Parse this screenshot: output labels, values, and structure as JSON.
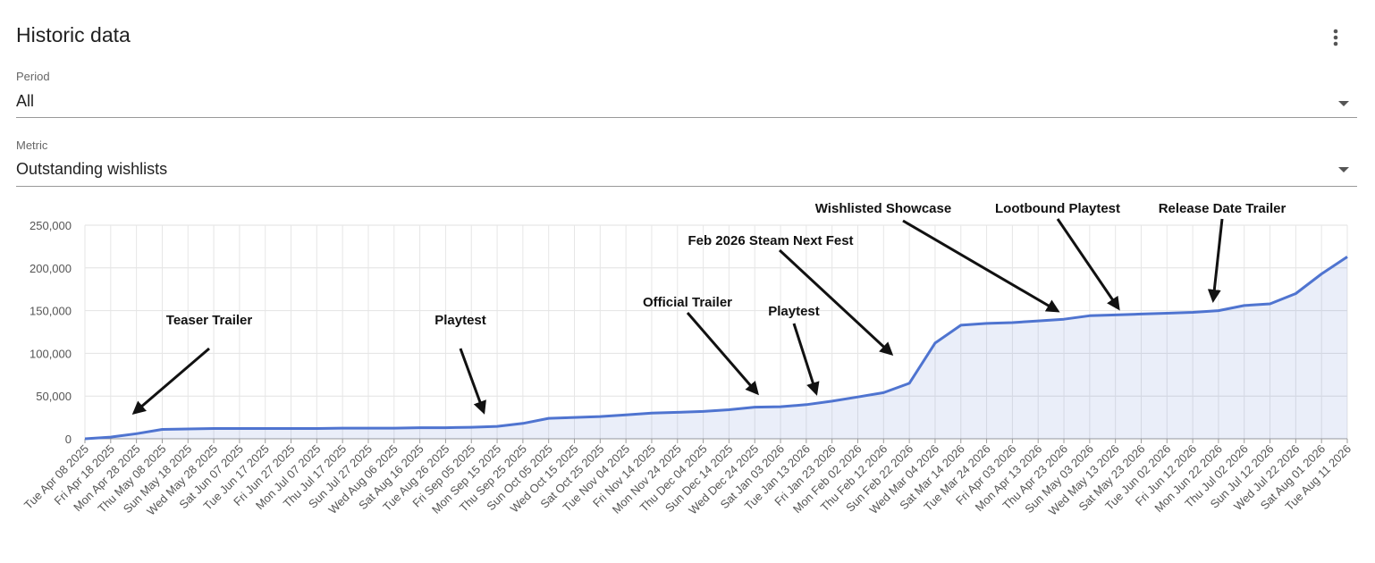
{
  "header": {
    "title": "Historic data"
  },
  "filters": [
    {
      "label": "Period",
      "value": "All"
    },
    {
      "label": "Metric",
      "value": "Outstanding wishlists"
    }
  ],
  "chart_data": {
    "type": "line",
    "categories": [
      "Tue Apr 08 2025",
      "Fri Apr 18 2025",
      "Mon Apr 28 2025",
      "Thu May 08 2025",
      "Sun May 18 2025",
      "Wed May 28 2025",
      "Sat Jun 07 2025",
      "Tue Jun 17 2025",
      "Fri Jun 27 2025",
      "Mon Jul 07 2025",
      "Thu Jul 17 2025",
      "Sun Jul 27 2025",
      "Wed Aug 06 2025",
      "Sat Aug 16 2025",
      "Tue Aug 26 2025",
      "Fri Sep 05 2025",
      "Mon Sep 15 2025",
      "Thu Sep 25 2025",
      "Sun Oct 05 2025",
      "Wed Oct 15 2025",
      "Sat Oct 25 2025",
      "Tue Nov 04 2025",
      "Fri Nov 14 2025",
      "Mon Nov 24 2025",
      "Thu Dec 04 2025",
      "Sun Dec 14 2025",
      "Wed Dec 24 2025",
      "Sat Jan 03 2026",
      "Tue Jan 13 2026",
      "Fri Jan 23 2026",
      "Mon Feb 02 2026",
      "Thu Feb 12 2026",
      "Sun Feb 22 2026",
      "Wed Mar 04 2026",
      "Sat Mar 14 2026",
      "Tue Mar 24 2026",
      "Fri Apr 03 2026",
      "Mon Apr 13 2026",
      "Thu Apr 23 2026",
      "Sun May 03 2026",
      "Wed May 13 2026",
      "Sat May 23 2026",
      "Tue Jun 02 2026",
      "Fri Jun 12 2026",
      "Mon Jun 22 2026",
      "Thu Jul 02 2026",
      "Sun Jul 12 2026",
      "Wed Jul 22 2026",
      "Sat Aug 01 2026",
      "Tue Aug 11 2026"
    ],
    "values": [
      0,
      2000,
      6000,
      11000,
      11500,
      12000,
      12000,
      12000,
      12000,
      12000,
      12500,
      12500,
      12500,
      13000,
      13000,
      13500,
      14500,
      18000,
      24000,
      25000,
      26000,
      28000,
      30000,
      31000,
      32000,
      34000,
      37000,
      37500,
      40000,
      44000,
      49000,
      54000,
      65000,
      112000,
      133000,
      135000,
      136000,
      138000,
      140000,
      144000,
      145000,
      146000,
      147000,
      148000,
      150000,
      156000,
      158000,
      170000,
      193000,
      213000
    ],
    "color": "#4f74d0",
    "ylim": [
      0,
      250000
    ],
    "yticks": [
      0,
      {
        "value": 50000,
        "label": "50,000"
      },
      {
        "value": 100000,
        "label": "100,000"
      },
      {
        "value": 150000,
        "label": "150,000"
      },
      {
        "value": 200000,
        "label": "200,000"
      },
      {
        "value": 250000,
        "label": "250,000"
      }
    ],
    "grid": true,
    "annotations": [
      "Teaser Trailer",
      "Playtest",
      "Official Trailer",
      "Playtest",
      "Feb 2026 Steam Next Fest",
      "Wishlisted Showcase",
      "Lootbound Playtest",
      "Release Date Trailer"
    ]
  }
}
